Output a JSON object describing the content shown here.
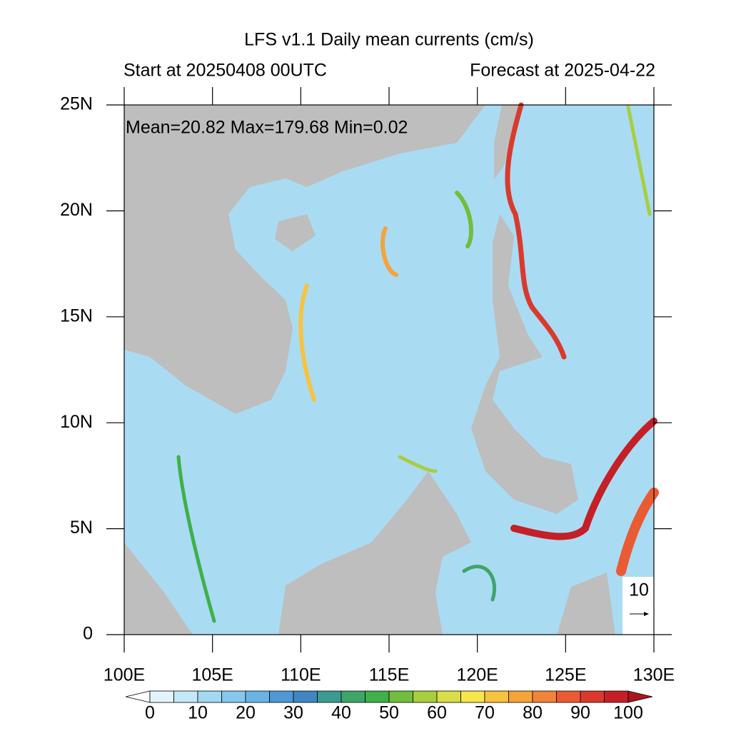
{
  "title": "LFS v1.1 Daily mean currents (cm/s)",
  "start_label": "Start at 20250408 00UTC",
  "forecast_label": "Forecast at 2025-04-22",
  "stats_label": "Mean=20.82  Max=179.68  Min=0.02",
  "reference_vector_label": "10",
  "map": {
    "xlim": [
      100,
      130
    ],
    "ylim": [
      0,
      25
    ],
    "xticks": [
      {
        "value": 100,
        "label": "100E"
      },
      {
        "value": 105,
        "label": "105E"
      },
      {
        "value": 110,
        "label": "110E"
      },
      {
        "value": 115,
        "label": "115E"
      },
      {
        "value": 120,
        "label": "120E"
      },
      {
        "value": 125,
        "label": "125E"
      },
      {
        "value": 130,
        "label": "130E"
      }
    ],
    "yticks": [
      {
        "value": 0,
        "label": "0"
      },
      {
        "value": 5,
        "label": "5N"
      },
      {
        "value": 10,
        "label": "10N"
      },
      {
        "value": 15,
        "label": "15N"
      },
      {
        "value": 20,
        "label": "20N"
      },
      {
        "value": 25,
        "label": "25N"
      }
    ]
  },
  "colorbar": {
    "levels": [
      0,
      5,
      10,
      15,
      20,
      25,
      30,
      35,
      40,
      45,
      50,
      55,
      60,
      65,
      70,
      75,
      80,
      85,
      90,
      95,
      100
    ],
    "ticks": [
      0,
      10,
      20,
      30,
      40,
      50,
      60,
      70,
      80,
      90,
      100
    ],
    "colors": [
      "#ffffff",
      "#e2f4fb",
      "#c4e8f7",
      "#a3d8f2",
      "#86c7ee",
      "#6ab3e5",
      "#4f98d6",
      "#3f86c2",
      "#3c9a92",
      "#3ea568",
      "#3fb04a",
      "#72bd3c",
      "#a8ce40",
      "#d9dd47",
      "#f7e54d",
      "#f7c33f",
      "#f5a33a",
      "#f1843a",
      "#ea5b33",
      "#da3a2c",
      "#c51f27",
      "#a8171e"
    ]
  }
}
